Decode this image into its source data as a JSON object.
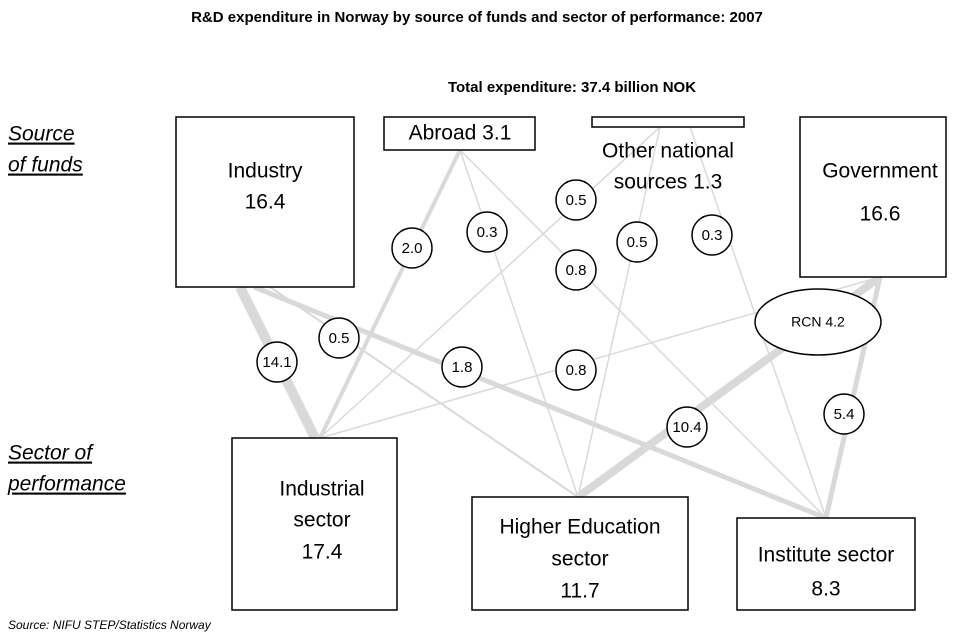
{
  "title": "R&D expenditure in Norway by source of funds and sector of performance: 2007",
  "subtitle": "Total expenditure: 37.4 billion NOK",
  "side_labels": {
    "source_of_funds": [
      "Source",
      "of funds"
    ],
    "sector_of_performance": [
      "Sector of",
      "performance"
    ]
  },
  "sources": [
    {
      "lines": [
        "Industry",
        "16.4"
      ]
    },
    {
      "lines": [
        "Abroad 3.1"
      ]
    },
    {
      "lines": [
        "Other national",
        "sources 1.3"
      ]
    },
    {
      "lines": [
        "Government",
        "16.6"
      ]
    }
  ],
  "sectors": [
    {
      "lines": [
        "Industrial",
        "sector",
        "17.4"
      ]
    },
    {
      "lines": [
        "Higher Education",
        "sector",
        "11.7"
      ]
    },
    {
      "lines": [
        "Institute sector",
        "8.3"
      ]
    }
  ],
  "flows": [
    "2.0",
    "0.3",
    "0.5",
    "0.8",
    "0.5",
    "0.3",
    "14.1",
    "0.5",
    "1.8",
    "0.8",
    "10.4",
    "5.4"
  ],
  "rcn": "RCN 4.2",
  "source_note": "Source: NIFU STEP/Statistics Norway"
}
